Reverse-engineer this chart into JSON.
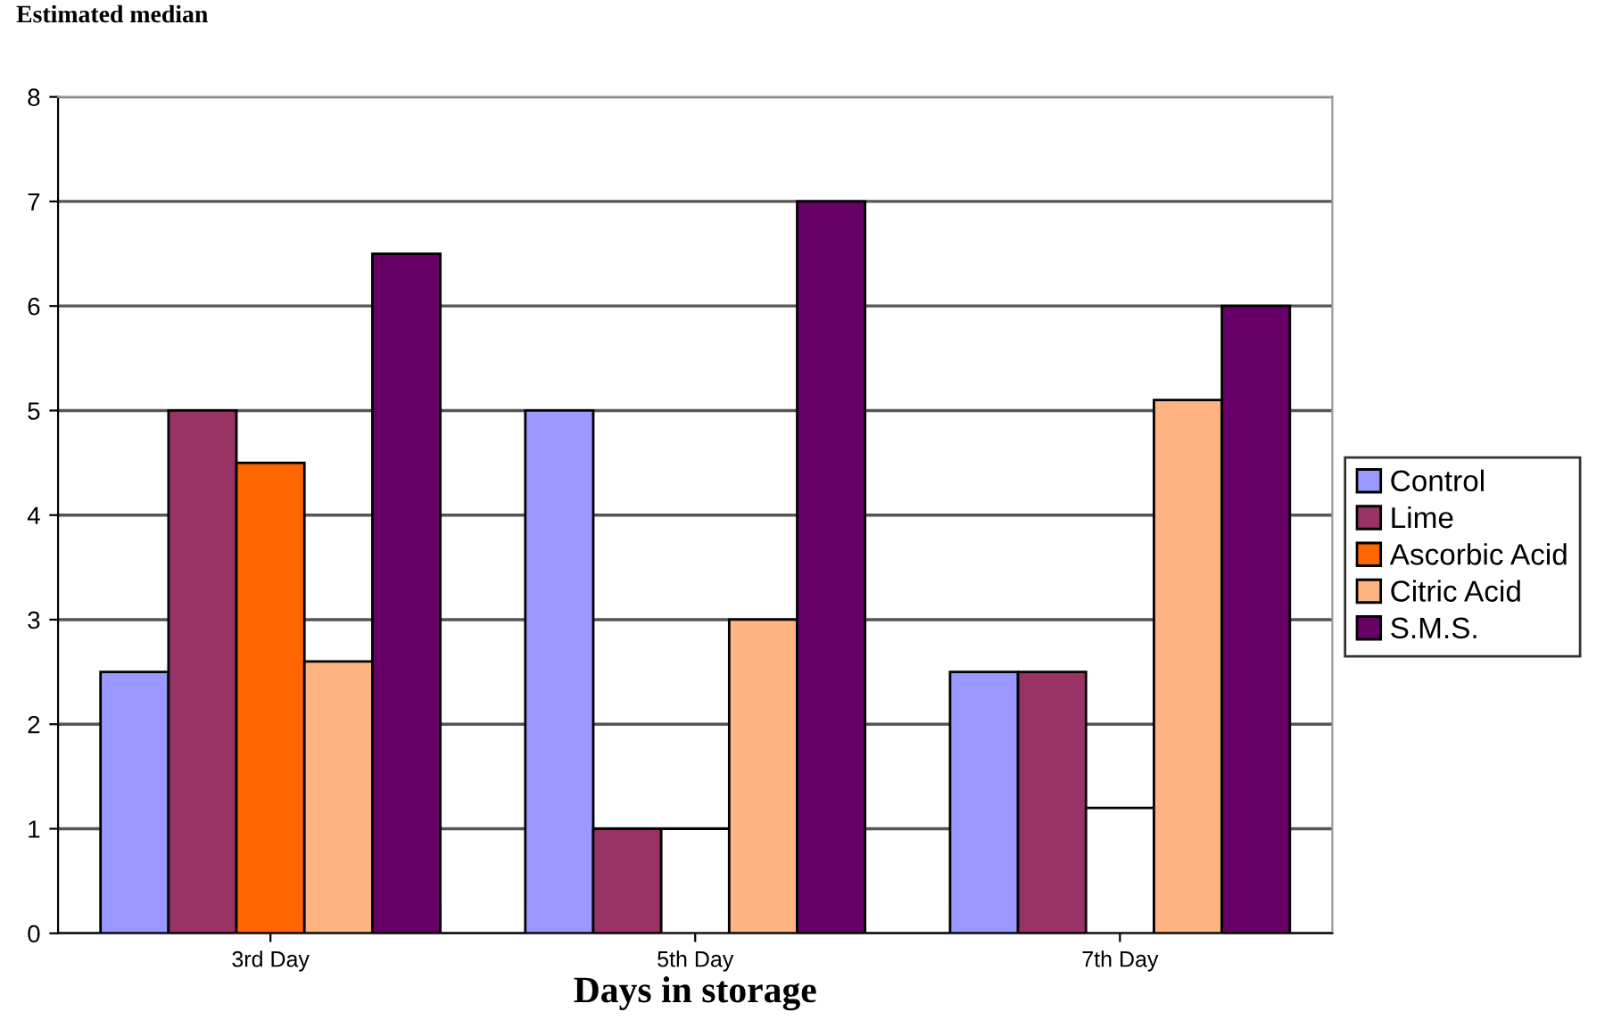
{
  "chart_data": {
    "type": "bar",
    "xlabel": "Days in storage",
    "ylabel": "Estimated median",
    "categories": [
      "3rd Day",
      "5th Day",
      "7th Day"
    ],
    "series": [
      {
        "name": "Control",
        "color": "#9999ff",
        "values": [
          2.5,
          5,
          2.5
        ]
      },
      {
        "name": "Lime",
        "color": "#993366",
        "values": [
          5,
          1,
          2.5
        ]
      },
      {
        "name": "Ascorbic Acid",
        "color": "#ff6600",
        "colors": [
          "#ff6600",
          "#ffffff",
          "#ffffff"
        ],
        "values": [
          4.5,
          1,
          1.2
        ]
      },
      {
        "name": "Citric Acid",
        "color": "#ffb380",
        "values": [
          2.6,
          3,
          5.1
        ]
      },
      {
        "name": "S.M.S.",
        "color": "#660066",
        "values": [
          6.5,
          7,
          6
        ]
      }
    ],
    "ylim": [
      0,
      8
    ],
    "yticks": [
      0,
      1,
      2,
      3,
      4,
      5,
      6,
      7,
      8
    ],
    "grid": "y",
    "legend": "right"
  }
}
